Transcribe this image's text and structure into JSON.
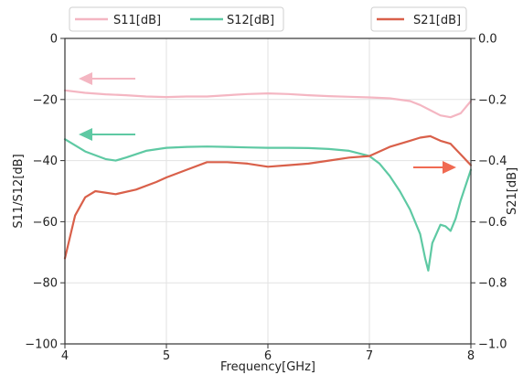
{
  "chart_data": {
    "type": "line",
    "title": "",
    "xlabel": "Frequency[GHz]",
    "ylabel_left": "S11/S12[dB]",
    "ylabel_right": "S21[dB]",
    "xlim": [
      4,
      8
    ],
    "ylim_left": [
      -100,
      0
    ],
    "ylim_right": [
      -1.0,
      0.0
    ],
    "x_ticks": [
      "4",
      "5",
      "6",
      "7",
      "8"
    ],
    "y_ticks_left": [
      "0",
      "−20",
      "−40",
      "−60",
      "−80",
      "−100"
    ],
    "y_ticks_right": [
      "0.0",
      "−0.2",
      "−0.4",
      "−0.6",
      "−0.8",
      "−1.0"
    ],
    "grid": true,
    "series": [
      {
        "name": "S11[dB]",
        "axis": "left",
        "color": "#f4b6c2",
        "x": [
          4.0,
          4.2,
          4.4,
          4.6,
          4.8,
          5.0,
          5.2,
          5.4,
          5.6,
          5.8,
          6.0,
          6.2,
          6.4,
          6.6,
          6.8,
          7.0,
          7.2,
          7.4,
          7.5,
          7.6,
          7.7,
          7.8,
          7.9,
          8.0
        ],
        "y": [
          -17,
          -17.8,
          -18.3,
          -18.6,
          -19.0,
          -19.2,
          -19.0,
          -19.0,
          -18.6,
          -18.2,
          -18.0,
          -18.2,
          -18.6,
          -18.9,
          -19.1,
          -19.3,
          -19.6,
          -20.5,
          -21.8,
          -23.5,
          -25.2,
          -25.8,
          -24.5,
          -20.5
        ]
      },
      {
        "name": "S12[dB]",
        "axis": "left",
        "color": "#5ec9a3",
        "x": [
          4.0,
          4.2,
          4.4,
          4.5,
          4.6,
          4.8,
          5.0,
          5.2,
          5.4,
          5.6,
          5.8,
          6.0,
          6.2,
          6.4,
          6.6,
          6.8,
          7.0,
          7.1,
          7.2,
          7.3,
          7.4,
          7.5,
          7.55,
          7.58,
          7.62,
          7.7,
          7.75,
          7.8,
          7.85,
          7.9,
          8.0
        ],
        "y": [
          -33,
          -37,
          -39.5,
          -40,
          -39,
          -36.8,
          -35.8,
          -35.5,
          -35.4,
          -35.5,
          -35.7,
          -35.8,
          -35.8,
          -35.9,
          -36.2,
          -36.8,
          -38.5,
          -41,
          -45,
          -50,
          -56,
          -64,
          -72,
          -76,
          -67,
          -61,
          -61.5,
          -63,
          -59,
          -53,
          -43
        ]
      },
      {
        "name": "S21[dB]",
        "axis": "right",
        "color": "#d9604a",
        "x": [
          4.0,
          4.1,
          4.2,
          4.3,
          4.5,
          4.7,
          4.9,
          5.0,
          5.2,
          5.4,
          5.6,
          5.8,
          6.0,
          6.2,
          6.4,
          6.6,
          6.8,
          7.0,
          7.2,
          7.4,
          7.5,
          7.6,
          7.7,
          7.75,
          7.8,
          7.9,
          8.0
        ],
        "y": [
          -0.72,
          -0.58,
          -0.52,
          -0.5,
          -0.51,
          -0.495,
          -0.47,
          -0.455,
          -0.43,
          -0.405,
          -0.405,
          -0.41,
          -0.42,
          -0.415,
          -0.41,
          -0.4,
          -0.39,
          -0.385,
          -0.355,
          -0.335,
          -0.325,
          -0.32,
          -0.335,
          -0.34,
          -0.345,
          -0.38,
          -0.415
        ]
      }
    ],
    "legend_position": "top"
  }
}
